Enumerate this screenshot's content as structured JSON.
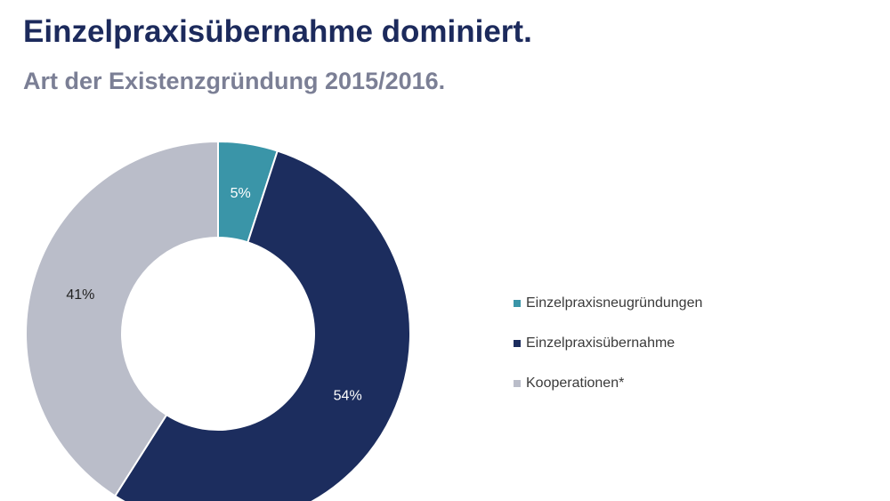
{
  "chart_data": {
    "type": "pie",
    "variant": "donut",
    "title": "Einzelpraxisübernahme dominiert.",
    "subtitle": "Art der Existenzgründung 2015/2016.",
    "categories": [
      "Einzelpraxisneugründungen",
      "Einzelpraxisübernahme",
      "Kooperationen*"
    ],
    "values": [
      5,
      54,
      41
    ],
    "data_labels": [
      "5%",
      "54%",
      "41%"
    ],
    "colors": [
      "#3a95a8",
      "#1c2d5e",
      "#babdc9"
    ],
    "label_colors": [
      "#ffffff",
      "#ffffff",
      "#222222"
    ],
    "legend_position": "right",
    "start_angle": "top",
    "direction": "clockwise"
  }
}
